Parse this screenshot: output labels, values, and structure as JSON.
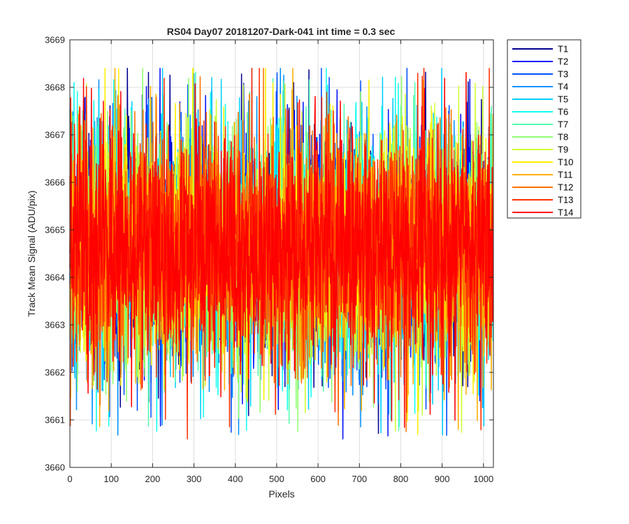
{
  "chart_data": {
    "type": "line",
    "title": "RS04 Day07 20181207-Dark-041 int time = 0.3 sec",
    "xlabel": "Pixels",
    "ylabel": "Track Mean Signal (ADU/pix)",
    "xlim": [
      0,
      1024
    ],
    "ylim": [
      3660,
      3669
    ],
    "xticks": [
      "0",
      "100",
      "200",
      "300",
      "400",
      "500",
      "600",
      "700",
      "800",
      "900",
      "1000"
    ],
    "yticks": [
      "3660",
      "3661",
      "3662",
      "3663",
      "3664",
      "3665",
      "3666",
      "3667",
      "3668",
      "3669"
    ],
    "grid": true,
    "legend_position": "outside-top-right",
    "noise_profile": {
      "n_points": 1024,
      "mean": 3664.6,
      "typical_min": 3662.2,
      "typical_max": 3667.3
    },
    "series": [
      {
        "name": "T1",
        "color": "#00008f"
      },
      {
        "name": "T2",
        "color": "#0010ff"
      },
      {
        "name": "T3",
        "color": "#0050ff"
      },
      {
        "name": "T4",
        "color": "#0090ff"
      },
      {
        "name": "T5",
        "color": "#00cfff"
      },
      {
        "name": "T6",
        "color": "#10ffef"
      },
      {
        "name": "T7",
        "color": "#50ffaf"
      },
      {
        "name": "T8",
        "color": "#8fff70"
      },
      {
        "name": "T9",
        "color": "#cfff30"
      },
      {
        "name": "T10",
        "color": "#ffef00"
      },
      {
        "name": "T11",
        "color": "#ffaf00"
      },
      {
        "name": "T12",
        "color": "#ff7000"
      },
      {
        "name": "T13",
        "color": "#ff3000"
      },
      {
        "name": "T14",
        "color": "#ff0000"
      }
    ]
  }
}
